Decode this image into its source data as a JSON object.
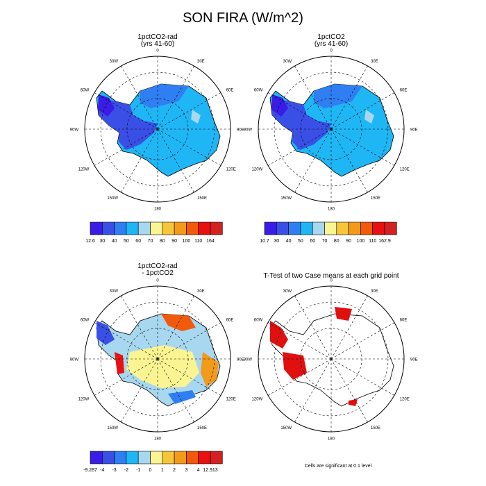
{
  "figure": {
    "title": "SON FIRA (W/m^2)",
    "footnote": "Cells are significant at 0.1 level"
  },
  "chart_data": [
    {
      "type": "heatmap",
      "projection": "south-polar-stereographic",
      "title": "1pctCO2-rad",
      "subtitle": "(yrs 41-60)",
      "lon_labels": [
        "0",
        "30E",
        "60E",
        "90E",
        "120E",
        "150E",
        "180",
        "150W",
        "120W",
        "90W",
        "60W",
        "30W"
      ],
      "colorbar": {
        "labels": [
          "12.6",
          "30",
          "40",
          "50",
          "60",
          "70",
          "80",
          "90",
          "100",
          "110",
          "164"
        ],
        "colors": [
          "#3a1ce6",
          "#3a4fe6",
          "#2f7ff2",
          "#1fb6f5",
          "#a8d7f0",
          "#faf592",
          "#f7c53a",
          "#f29a1a",
          "#f05a0a",
          "#e81010",
          "#d42020"
        ]
      }
    },
    {
      "type": "heatmap",
      "projection": "south-polar-stereographic",
      "title": "1pctCO2",
      "subtitle": "(yrs 41-60)",
      "lon_labels": [
        "0",
        "30E",
        "60E",
        "90E",
        "120E",
        "150E",
        "180",
        "150W",
        "120W",
        "90W",
        "60W",
        "30W"
      ],
      "colorbar": {
        "labels": [
          "10.7",
          "30",
          "40",
          "50",
          "60",
          "70",
          "80",
          "90",
          "100",
          "110",
          "162.9"
        ],
        "colors": [
          "#3a1ce6",
          "#3a4fe6",
          "#2f7ff2",
          "#1fb6f5",
          "#a8d7f0",
          "#faf592",
          "#f7c53a",
          "#f29a1a",
          "#f05a0a",
          "#e81010",
          "#d42020"
        ]
      }
    },
    {
      "type": "heatmap",
      "projection": "south-polar-stereographic",
      "title": "1pctCO2-rad",
      "subtitle": "- 1pctCO2",
      "lon_labels": [
        "0",
        "30E",
        "60E",
        "90E",
        "120E",
        "150E",
        "180",
        "150W",
        "120W",
        "90W",
        "60W",
        "30W"
      ],
      "colorbar": {
        "labels": [
          "-9.287",
          "-4",
          "-3",
          "-2",
          "-1",
          "0",
          "1",
          "2",
          "3",
          "4",
          "12.913"
        ],
        "colors": [
          "#3a1ce6",
          "#3a4fe6",
          "#2f7ff2",
          "#1fb6f5",
          "#a8d7f0",
          "#faf592",
          "#f7c53a",
          "#f29a1a",
          "#f05a0a",
          "#e81010",
          "#d42020"
        ]
      }
    },
    {
      "type": "heatmap",
      "projection": "south-polar-stereographic",
      "title": "T-Test of two Case means at each grid point",
      "subtitle": "",
      "lon_labels": [
        "0",
        "30E",
        "60E",
        "90E",
        "120E",
        "150E",
        "180",
        "150W",
        "120W",
        "90W",
        "60W",
        "30W"
      ],
      "significant_color": "#e01010"
    }
  ]
}
